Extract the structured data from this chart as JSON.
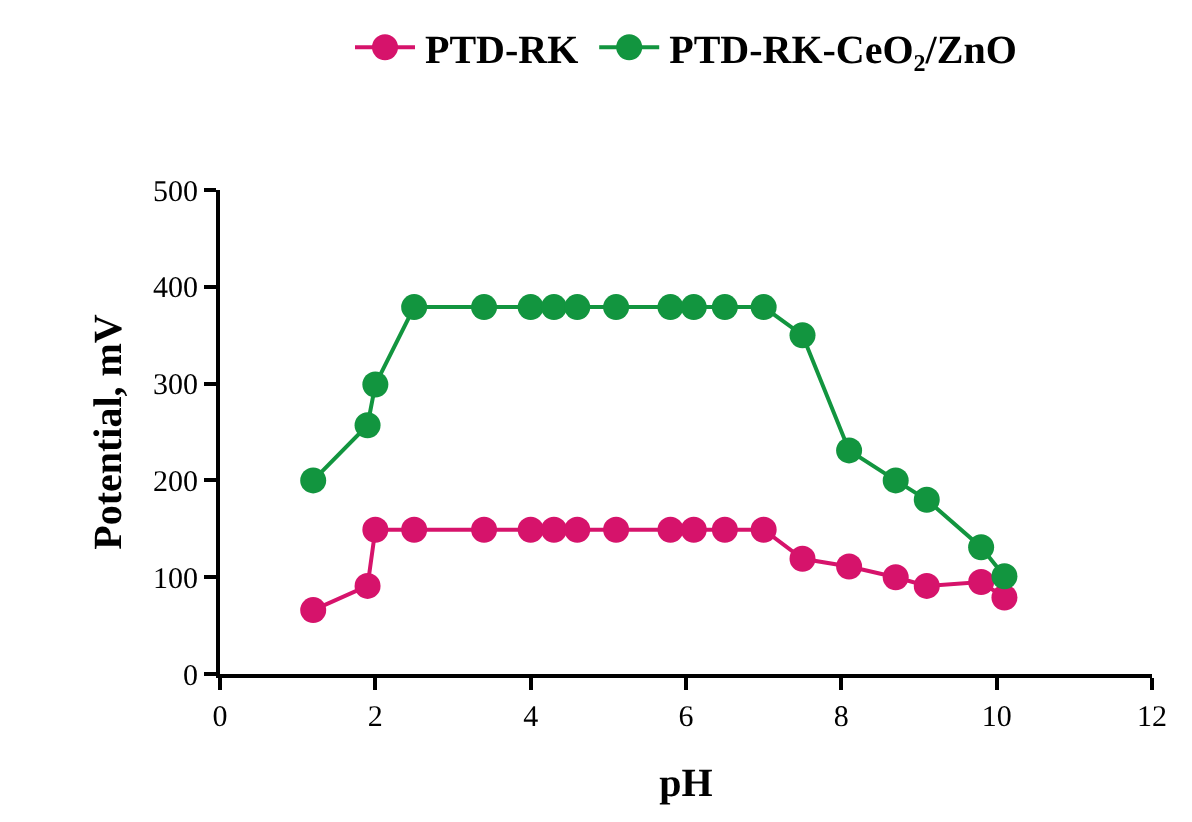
{
  "chart_data": {
    "type": "line",
    "xlabel": "pH",
    "ylabel": "Potential, mV",
    "xlim": [
      0,
      12
    ],
    "xticks": [
      0,
      2,
      4,
      6,
      8,
      10,
      12
    ],
    "ylim": [
      0,
      500
    ],
    "yticks": [
      0,
      100,
      200,
      300,
      400,
      500
    ],
    "legend": "top",
    "marker": "circle",
    "line_style": "solid",
    "x": [
      1.2,
      1.9,
      2.0,
      2.5,
      3.4,
      4.0,
      4.3,
      4.6,
      5.1,
      5.8,
      6.1,
      6.5,
      7.0,
      7.5,
      8.1,
      8.7,
      9.1,
      9.8,
      10.1
    ],
    "series": [
      {
        "name": "PTD-RK",
        "color": "#d6136b",
        "values": [
          66,
          91,
          149,
          149,
          149,
          149,
          149,
          149,
          149,
          149,
          149,
          149,
          149,
          119,
          111,
          100,
          91,
          95,
          79
        ]
      },
      {
        "name": "PTD-RK-CeO₂/ZnO",
        "color": "#12953f",
        "values": [
          200,
          257,
          299,
          379,
          379,
          379,
          379,
          379,
          379,
          379,
          379,
          379,
          379,
          350,
          231,
          200,
          180,
          131,
          101
        ]
      }
    ]
  }
}
